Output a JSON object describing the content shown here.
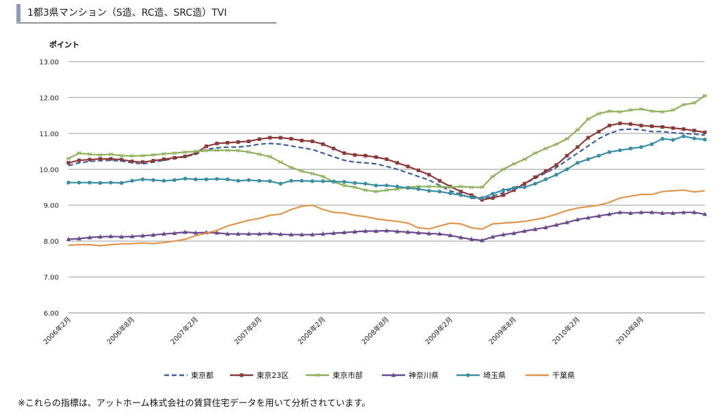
{
  "page": {
    "title": "1都3県マンション（S造、RC造、SRC造）TVI",
    "note": "※これらの指標は、アットホーム株式会社の賃貸住宅データを用いて分析されています。"
  },
  "chart_data": {
    "type": "line",
    "ylabel": "ポイント",
    "ylim": [
      6.0,
      13.0
    ],
    "yticks": [
      "13.00",
      "12.00",
      "11.00",
      "10.00",
      "9.00",
      "8.00",
      "7.00",
      "6.00"
    ],
    "grid": true,
    "legend_position": "bottom",
    "x_tick_labels": [
      {
        "label": "2006年2月",
        "index": 0
      },
      {
        "label": "2006年8月",
        "index": 6
      },
      {
        "label": "2007年2月",
        "index": 12
      },
      {
        "label": "2007年8月",
        "index": 18
      },
      {
        "label": "2008年2月",
        "index": 24
      },
      {
        "label": "2008年8月",
        "index": 30
      },
      {
        "label": "2009年2月",
        "index": 36
      },
      {
        "label": "2009年8月",
        "index": 42
      },
      {
        "label": "2010年2月",
        "index": 48
      },
      {
        "label": "2010年8月",
        "index": 54
      }
    ],
    "series": [
      {
        "name": "東京都",
        "color": "#3b5f9a",
        "style": "dashed",
        "marker": "none",
        "values": [
          10.1,
          10.18,
          10.22,
          10.24,
          10.25,
          10.23,
          10.18,
          10.15,
          10.2,
          10.25,
          10.3,
          10.35,
          10.42,
          10.55,
          10.6,
          10.62,
          10.62,
          10.65,
          10.7,
          10.72,
          10.7,
          10.65,
          10.6,
          10.55,
          10.45,
          10.35,
          10.25,
          10.2,
          10.18,
          10.15,
          10.08,
          10.0,
          9.9,
          9.8,
          9.7,
          9.55,
          9.4,
          9.3,
          9.2,
          9.17,
          9.25,
          9.35,
          9.48,
          9.6,
          9.75,
          9.9,
          10.05,
          10.25,
          10.45,
          10.65,
          10.85,
          11.0,
          11.1,
          11.12,
          11.1,
          11.05,
          11.05,
          11.02,
          11.0,
          10.98,
          10.95
        ]
      },
      {
        "name": "東京23区",
        "color": "#8b3a3a",
        "style": "solid",
        "marker": "square",
        "values": [
          10.18,
          10.25,
          10.27,
          10.29,
          10.29,
          10.27,
          10.22,
          10.2,
          10.24,
          10.28,
          10.32,
          10.36,
          10.45,
          10.64,
          10.72,
          10.74,
          10.76,
          10.78,
          10.84,
          10.88,
          10.88,
          10.85,
          10.8,
          10.78,
          10.7,
          10.58,
          10.45,
          10.4,
          10.38,
          10.34,
          10.28,
          10.18,
          10.08,
          9.97,
          9.85,
          9.68,
          9.52,
          9.38,
          9.28,
          9.15,
          9.2,
          9.28,
          9.42,
          9.6,
          9.78,
          9.95,
          10.12,
          10.38,
          10.62,
          10.88,
          11.05,
          11.22,
          11.28,
          11.26,
          11.22,
          11.2,
          11.18,
          11.15,
          11.12,
          11.08,
          11.03
        ]
      },
      {
        "name": "東京市部",
        "color": "#8fb05a",
        "style": "solid",
        "marker": "star",
        "values": [
          10.3,
          10.45,
          10.42,
          10.4,
          10.42,
          10.38,
          10.37,
          10.38,
          10.4,
          10.43,
          10.45,
          10.48,
          10.5,
          10.52,
          10.53,
          10.53,
          10.52,
          10.48,
          10.42,
          10.35,
          10.2,
          10.05,
          9.95,
          9.88,
          9.8,
          9.65,
          9.55,
          9.5,
          9.42,
          9.38,
          9.42,
          9.45,
          9.5,
          9.52,
          9.52,
          9.52,
          9.5,
          9.52,
          9.5,
          9.5,
          9.8,
          10.0,
          10.15,
          10.28,
          10.45,
          10.58,
          10.7,
          10.85,
          11.1,
          11.4,
          11.55,
          11.62,
          11.6,
          11.65,
          11.68,
          11.62,
          11.6,
          11.65,
          11.8,
          11.85,
          12.05
        ]
      },
      {
        "name": "神奈川県",
        "color": "#6a4a8c",
        "style": "solid",
        "marker": "triangle",
        "values": [
          8.05,
          8.07,
          8.1,
          8.12,
          8.13,
          8.12,
          8.13,
          8.15,
          8.17,
          8.2,
          8.22,
          8.25,
          8.23,
          8.24,
          8.23,
          8.2,
          8.2,
          8.2,
          8.2,
          8.21,
          8.19,
          8.18,
          8.18,
          8.18,
          8.2,
          8.22,
          8.24,
          8.26,
          8.28,
          8.28,
          8.29,
          8.27,
          8.25,
          8.23,
          8.21,
          8.2,
          8.16,
          8.1,
          8.05,
          8.02,
          8.12,
          8.18,
          8.22,
          8.28,
          8.33,
          8.38,
          8.45,
          8.52,
          8.6,
          8.65,
          8.7,
          8.75,
          8.8,
          8.78,
          8.8,
          8.8,
          8.78,
          8.78,
          8.8,
          8.8,
          8.75
        ]
      },
      {
        "name": "埼玉県",
        "color": "#3b8fa3",
        "style": "solid",
        "marker": "circle",
        "values": [
          9.63,
          9.63,
          9.63,
          9.62,
          9.63,
          9.62,
          9.68,
          9.72,
          9.7,
          9.68,
          9.7,
          9.74,
          9.72,
          9.72,
          9.73,
          9.72,
          9.68,
          9.7,
          9.68,
          9.67,
          9.6,
          9.68,
          9.68,
          9.67,
          9.67,
          9.66,
          9.65,
          9.62,
          9.6,
          9.55,
          9.55,
          9.52,
          9.48,
          9.45,
          9.4,
          9.38,
          9.33,
          9.28,
          9.22,
          9.2,
          9.32,
          9.42,
          9.48,
          9.5,
          9.6,
          9.72,
          9.85,
          10.0,
          10.18,
          10.28,
          10.38,
          10.48,
          10.53,
          10.58,
          10.62,
          10.7,
          10.85,
          10.82,
          10.92,
          10.86,
          10.83
        ]
      },
      {
        "name": "千葉県",
        "color": "#e0954a",
        "style": "solid",
        "marker": "none",
        "values": [
          7.88,
          7.9,
          7.9,
          7.87,
          7.9,
          7.92,
          7.93,
          7.95,
          7.93,
          7.96,
          8.0,
          8.05,
          8.15,
          8.22,
          8.3,
          8.42,
          8.5,
          8.58,
          8.63,
          8.72,
          8.75,
          8.88,
          8.97,
          9.0,
          8.88,
          8.8,
          8.78,
          8.72,
          8.68,
          8.62,
          8.58,
          8.55,
          8.5,
          8.37,
          8.34,
          8.42,
          8.5,
          8.48,
          8.37,
          8.33,
          8.48,
          8.5,
          8.52,
          8.55,
          8.6,
          8.66,
          8.75,
          8.85,
          8.92,
          8.96,
          9.0,
          9.08,
          9.2,
          9.25,
          9.3,
          9.3,
          9.38,
          9.4,
          9.42,
          9.37,
          9.4
        ]
      }
    ]
  }
}
